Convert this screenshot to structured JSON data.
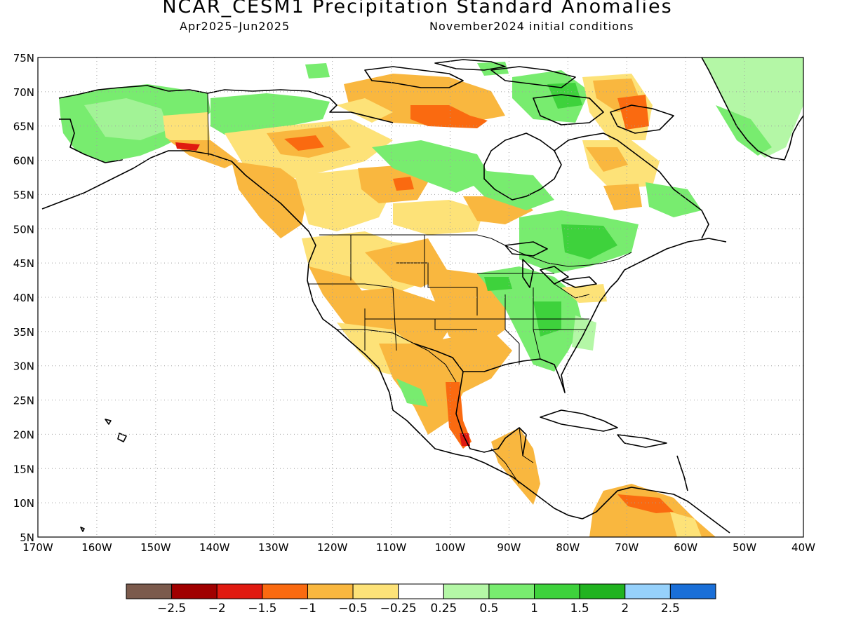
{
  "title": "NCAR_CESM1 Precipitation Standard Anomalies",
  "subtitle_left": "Apr2025–Jun2025",
  "subtitle_right": "November2024 initial conditions",
  "map": {
    "lon_range": [
      -170,
      -40
    ],
    "lat_range": [
      5,
      75
    ],
    "lat_ticks": [
      "75N",
      "70N",
      "65N",
      "60N",
      "55N",
      "50N",
      "45N",
      "40N",
      "35N",
      "30N",
      "25N",
      "20N",
      "15N",
      "10N",
      "5N"
    ],
    "lon_ticks": [
      "170W",
      "160W",
      "150W",
      "140W",
      "130W",
      "120W",
      "110W",
      "100W",
      "90W",
      "80W",
      "70W",
      "60W",
      "50W",
      "40W"
    ],
    "grid": "dotted"
  },
  "colorbar": {
    "colors": [
      "#7b5a4c",
      "#a00000",
      "#e01a10",
      "#fa6a10",
      "#f9b73f",
      "#fde278",
      "#ffffff",
      "#b4f7a6",
      "#78ec6f",
      "#3ed23c",
      "#21b320",
      "#96d1fb",
      "#1a6fd8"
    ],
    "labels": [
      "−2.5",
      "−2",
      "−1.5",
      "−1",
      "−0.5",
      "−0.25",
      "0.25",
      "0.5",
      "1",
      "1.5",
      "2",
      "2.5"
    ]
  },
  "regions": [
    {
      "name": "alaska-wet",
      "color": "#78ec6f"
    },
    {
      "name": "greenland-wet",
      "color": "#b4f7a6"
    },
    {
      "name": "western-canada-dry",
      "color": "#f9b73f"
    },
    {
      "name": "us-southwest-dry",
      "color": "#f9b73f"
    },
    {
      "name": "mexico-gulf-dry",
      "color": "#fa6a10"
    },
    {
      "name": "us-southeast-wet",
      "color": "#78ec6f"
    },
    {
      "name": "quebec-wet",
      "color": "#78ec6f"
    },
    {
      "name": "venezuela-dry",
      "color": "#f9b73f"
    }
  ]
}
